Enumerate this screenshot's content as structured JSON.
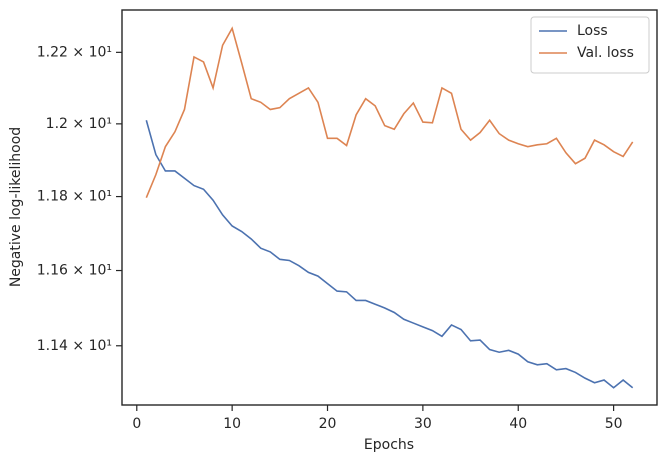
{
  "chart_data": {
    "type": "line",
    "xlabel": "Epochs",
    "ylabel": "Negative log-likelihood",
    "x": [
      1,
      2,
      3,
      4,
      5,
      6,
      7,
      8,
      9,
      10,
      11,
      12,
      13,
      14,
      15,
      16,
      17,
      18,
      19,
      20,
      21,
      22,
      23,
      24,
      25,
      26,
      27,
      28,
      29,
      30,
      31,
      32,
      33,
      34,
      35,
      36,
      37,
      38,
      39,
      40,
      41,
      42,
      43,
      44,
      45,
      46,
      47,
      48,
      49,
      50,
      51,
      52
    ],
    "series": [
      {
        "name": "Loss",
        "color": "#4c72b0",
        "values": [
          12.01,
          11.915,
          11.87,
          11.87,
          11.85,
          11.83,
          11.82,
          11.79,
          11.75,
          11.72,
          11.705,
          11.685,
          11.66,
          11.65,
          11.63,
          11.627,
          11.613,
          11.595,
          11.585,
          11.565,
          11.545,
          11.543,
          11.52,
          11.52,
          11.51,
          11.5,
          11.488,
          11.47,
          11.46,
          11.45,
          11.44,
          11.425,
          11.455,
          11.443,
          11.413,
          11.415,
          11.39,
          11.383,
          11.388,
          11.378,
          11.358,
          11.35,
          11.353,
          11.337,
          11.34,
          11.33,
          11.315,
          11.303,
          11.31,
          11.29,
          11.31,
          11.29
        ]
      },
      {
        "name": "Val. loss",
        "color": "#dd8452",
        "values": [
          11.797,
          11.86,
          11.937,
          11.978,
          12.04,
          12.187,
          12.173,
          12.1,
          12.22,
          12.268,
          12.17,
          12.07,
          12.06,
          12.04,
          12.045,
          12.07,
          12.085,
          12.1,
          12.06,
          11.96,
          11.96,
          11.94,
          12.025,
          12.07,
          12.05,
          11.995,
          11.985,
          12.028,
          12.058,
          12.005,
          12.003,
          12.1,
          12.085,
          11.985,
          11.955,
          11.976,
          12.01,
          11.973,
          11.955,
          11.945,
          11.937,
          11.942,
          11.945,
          11.96,
          11.92,
          11.89,
          11.905,
          11.955,
          11.942,
          11.923,
          11.91,
          11.95
        ]
      }
    ],
    "xlim": [
      -1.55,
      54.55
    ],
    "xticks": [
      0,
      10,
      20,
      30,
      40,
      50
    ],
    "ylim": [
      11.245,
      12.32
    ],
    "yscale": "log",
    "yticks": [
      {
        "value": 11.4,
        "label": "1.14 × 10¹"
      },
      {
        "value": 11.6,
        "label": "1.16 × 10¹"
      },
      {
        "value": 11.8,
        "label": "1.18 × 10¹"
      },
      {
        "value": 12.0,
        "label": "1.2 × 10¹"
      },
      {
        "value": 12.2,
        "label": "1.22 × 10¹"
      }
    ],
    "legend": "upper right",
    "grid": false
  }
}
